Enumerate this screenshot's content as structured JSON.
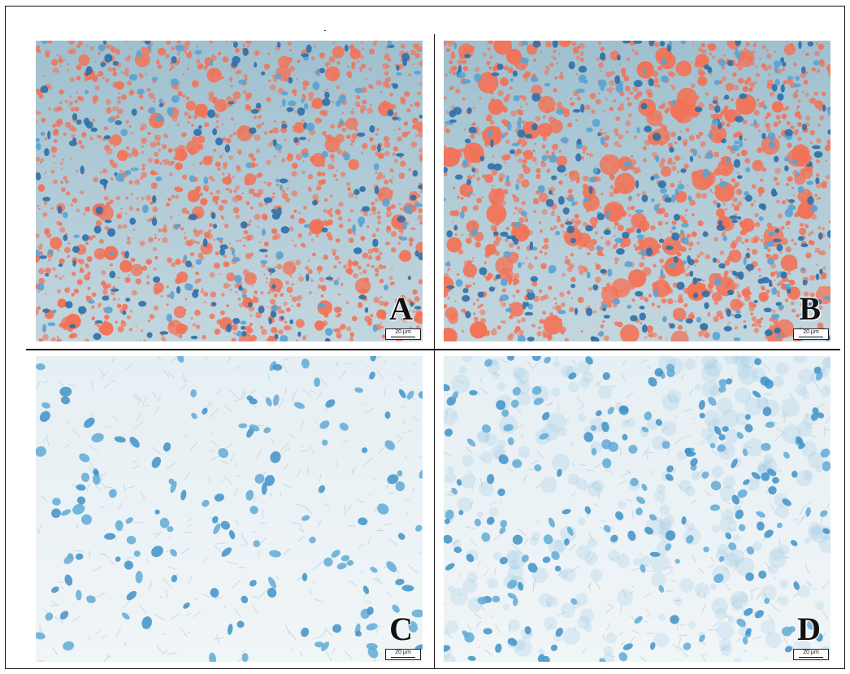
{
  "panels": [
    {
      "id": "A",
      "label": "A",
      "scale_label": "20 µm",
      "stain": "orange-red droplets with blue nuclei"
    },
    {
      "id": "B",
      "label": "B",
      "scale_label": "20 µm",
      "stain": "orange-red droplets with blue nuclei"
    },
    {
      "id": "C",
      "label": "C",
      "scale_label": "20 µm",
      "stain": "blue nuclei only"
    },
    {
      "id": "D",
      "label": "D",
      "scale_label": "20 µm",
      "stain": "blue nuclei only"
    }
  ],
  "colors": {
    "background_top": "#b9cbd3",
    "background_bottom": "#e3edf1",
    "lipid": "#f27357",
    "nucleus_dark": "#2f6fa8",
    "nucleus_light": "#5aa3d1"
  }
}
